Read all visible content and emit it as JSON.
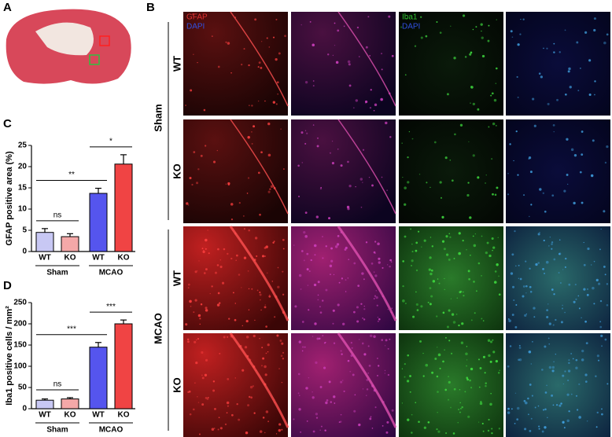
{
  "panel_labels": [
    "A",
    "B"
  ],
  "microscopy": {
    "group_labels": [
      "Sham",
      "MCAO"
    ],
    "row_labels": [
      "WT",
      "KO",
      "WT",
      "KO"
    ],
    "channel_labels": [
      {
        "column": 0,
        "texts": [
          "GFAP",
          "DAPI"
        ],
        "colors": [
          "#e03030",
          "#3050e0"
        ]
      },
      {
        "column": 2,
        "texts": [
          "Iba1",
          "DAPI"
        ],
        "colors": [
          "#30c030",
          "#3050e0"
        ]
      }
    ]
  },
  "chart_data": [
    {
      "type": "bar",
      "panel_label": "C",
      "ylabel": "GFAP positive area (%)",
      "categories": [
        "WT",
        "KO",
        "WT",
        "KO"
      ],
      "groups": [
        {
          "name": "Sham",
          "span": [
            0,
            1
          ]
        },
        {
          "name": "MCAO",
          "span": [
            2,
            3
          ]
        }
      ],
      "values": [
        4.5,
        3.5,
        13.7,
        20.6
      ],
      "errors": [
        0.9,
        0.7,
        1.2,
        2.2
      ],
      "colors": [
        "#c8c8f4",
        "#f4a8a8",
        "#5555ee",
        "#f04444"
      ],
      "ylim": [
        0,
        25
      ],
      "yticks": [
        0,
        5,
        10,
        15,
        20,
        25
      ],
      "significance": [
        {
          "label": "ns",
          "pair": [
            0,
            1
          ]
        },
        {
          "label": "**",
          "pair": [
            0,
            2
          ]
        },
        {
          "label": "*",
          "pair": [
            2,
            3
          ]
        }
      ]
    },
    {
      "type": "bar",
      "panel_label": "D",
      "ylabel": "Iba1 positive cells / mm²",
      "categories": [
        "WT",
        "KO",
        "WT",
        "KO"
      ],
      "groups": [
        {
          "name": "Sham",
          "span": [
            0,
            1
          ]
        },
        {
          "name": "MCAO",
          "span": [
            2,
            3
          ]
        }
      ],
      "values": [
        20,
        23,
        145,
        200
      ],
      "errors": [
        3,
        3,
        11,
        9
      ],
      "colors": [
        "#c8c8f4",
        "#f4a8a8",
        "#5555ee",
        "#f04444"
      ],
      "ylim": [
        0,
        250
      ],
      "yticks": [
        0,
        50,
        100,
        150,
        200,
        250
      ],
      "significance": [
        {
          "label": "ns",
          "pair": [
            0,
            1
          ]
        },
        {
          "label": "***",
          "pair": [
            0,
            2
          ]
        },
        {
          "label": "***",
          "pair": [
            2,
            3
          ]
        }
      ]
    }
  ]
}
